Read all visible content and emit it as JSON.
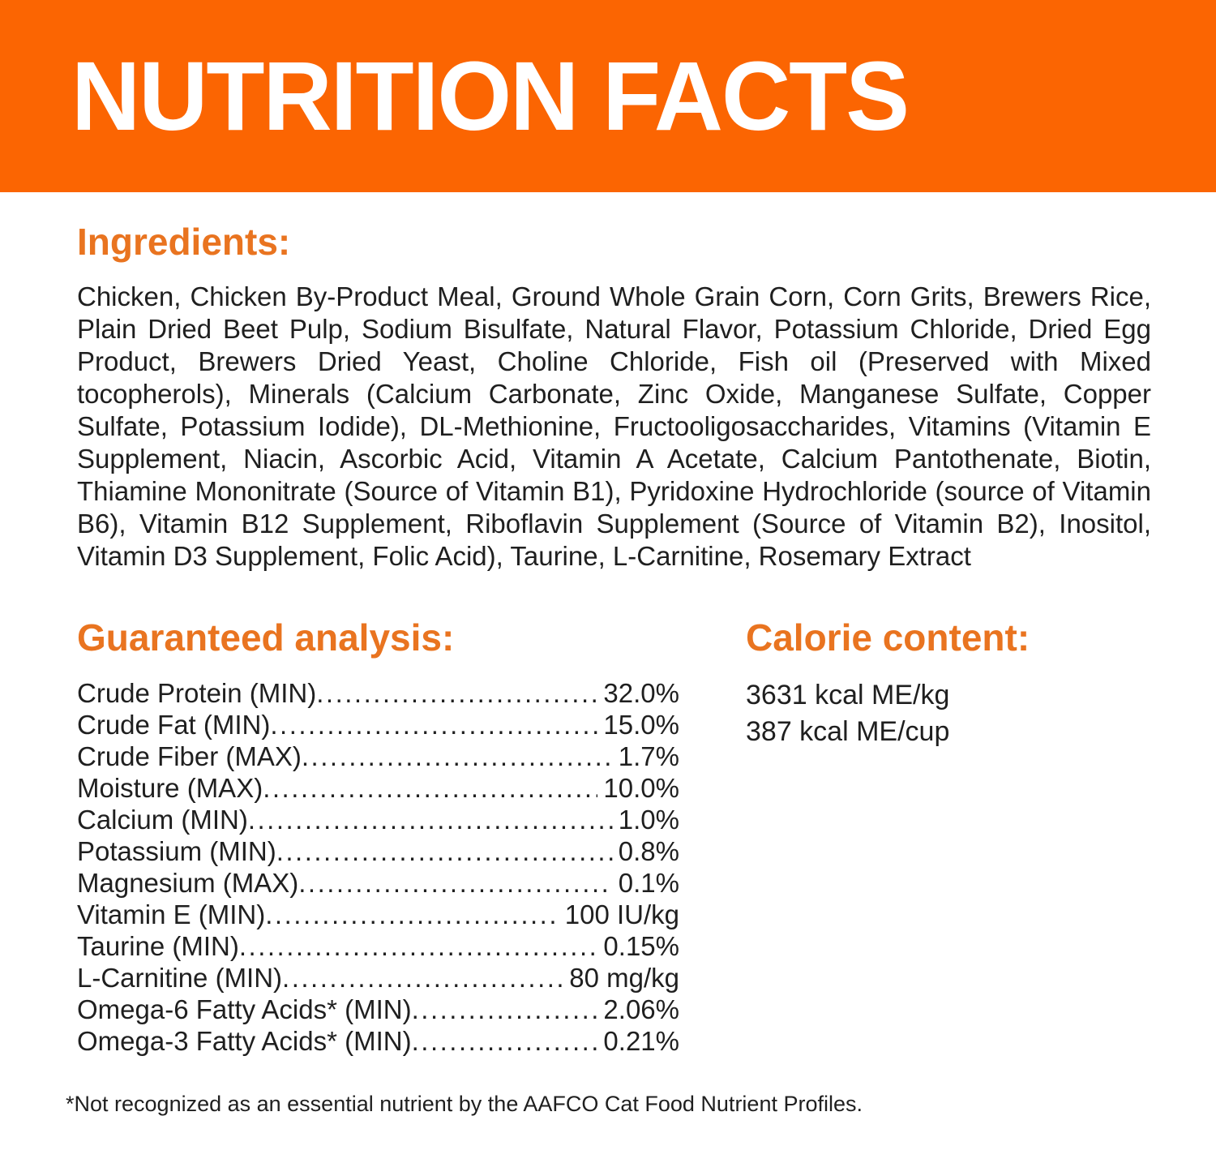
{
  "colors": {
    "banner_bg": "#FB6502",
    "banner_text": "#FFFFFF",
    "accent_orange": "#E97420",
    "body_text": "#1F1F1F",
    "page_bg": "#FFFFFF"
  },
  "header": {
    "title": "NUTRITION FACTS"
  },
  "ingredients": {
    "heading": "Ingredients:",
    "text": "Chicken, Chicken By-Product Meal, Ground Whole Grain Corn, Corn Grits, Brewers Rice, Plain Dried Beet Pulp, Sodium Bisulfate, Natural Flavor, Potassium Chloride, Dried Egg Product, Brewers Dried Yeast, Choline Chloride, Fish oil (Preserved with Mixed tocopherols), Minerals (Calcium Carbonate, Zinc Oxide, Manganese Sulfate, Copper Sulfate, Potassium Iodide), DL-Methionine, Fructooligosaccharides, Vitamins (Vitamin E Supplement, Niacin, Ascorbic Acid, Vitamin A Acetate, Calcium Pantothenate, Biotin, Thiamine Mononitrate (Source of Vitamin B1), Pyridoxine Hydrochloride (source of Vitamin B6), Vitamin B12 Supplement, Riboflavin Supplement (Source of Vitamin B2), Inositol, Vitamin D3 Supplement, Folic Acid), Taurine, L-Carnitine, Rosemary Extract"
  },
  "guaranteed_analysis": {
    "heading": "Guaranteed analysis:",
    "rows": [
      {
        "label": "Crude Protein (MIN)",
        "value": "32.0%"
      },
      {
        "label": "Crude Fat (MIN)",
        "value": "15.0%"
      },
      {
        "label": "Crude Fiber (MAX)",
        "value": "1.7%"
      },
      {
        "label": "Moisture (MAX)",
        "value": "10.0%"
      },
      {
        "label": "Calcium (MIN)",
        "value": "1.0%"
      },
      {
        "label": "Potassium (MIN)",
        "value": "0.8%"
      },
      {
        "label": "Magnesium (MAX)",
        "value": "0.1%"
      },
      {
        "label": "Vitamin E (MIN)",
        "value": "100 IU/kg"
      },
      {
        "label": "Taurine (MIN)",
        "value": "0.15%"
      },
      {
        "label": "L-Carnitine (MIN)",
        "value": "80 mg/kg"
      },
      {
        "label": "Omega-6 Fatty Acids* (MIN)",
        "value": "2.06%"
      },
      {
        "label": "Omega-3 Fatty Acids* (MIN)",
        "value": "0.21%"
      }
    ]
  },
  "calorie_content": {
    "heading": "Calorie content:",
    "lines": [
      "3631 kcal ME/kg",
      "387 kcal ME/cup"
    ]
  },
  "footnote": "*Not recognized as an essential nutrient by the AAFCO Cat Food Nutrient Profiles."
}
